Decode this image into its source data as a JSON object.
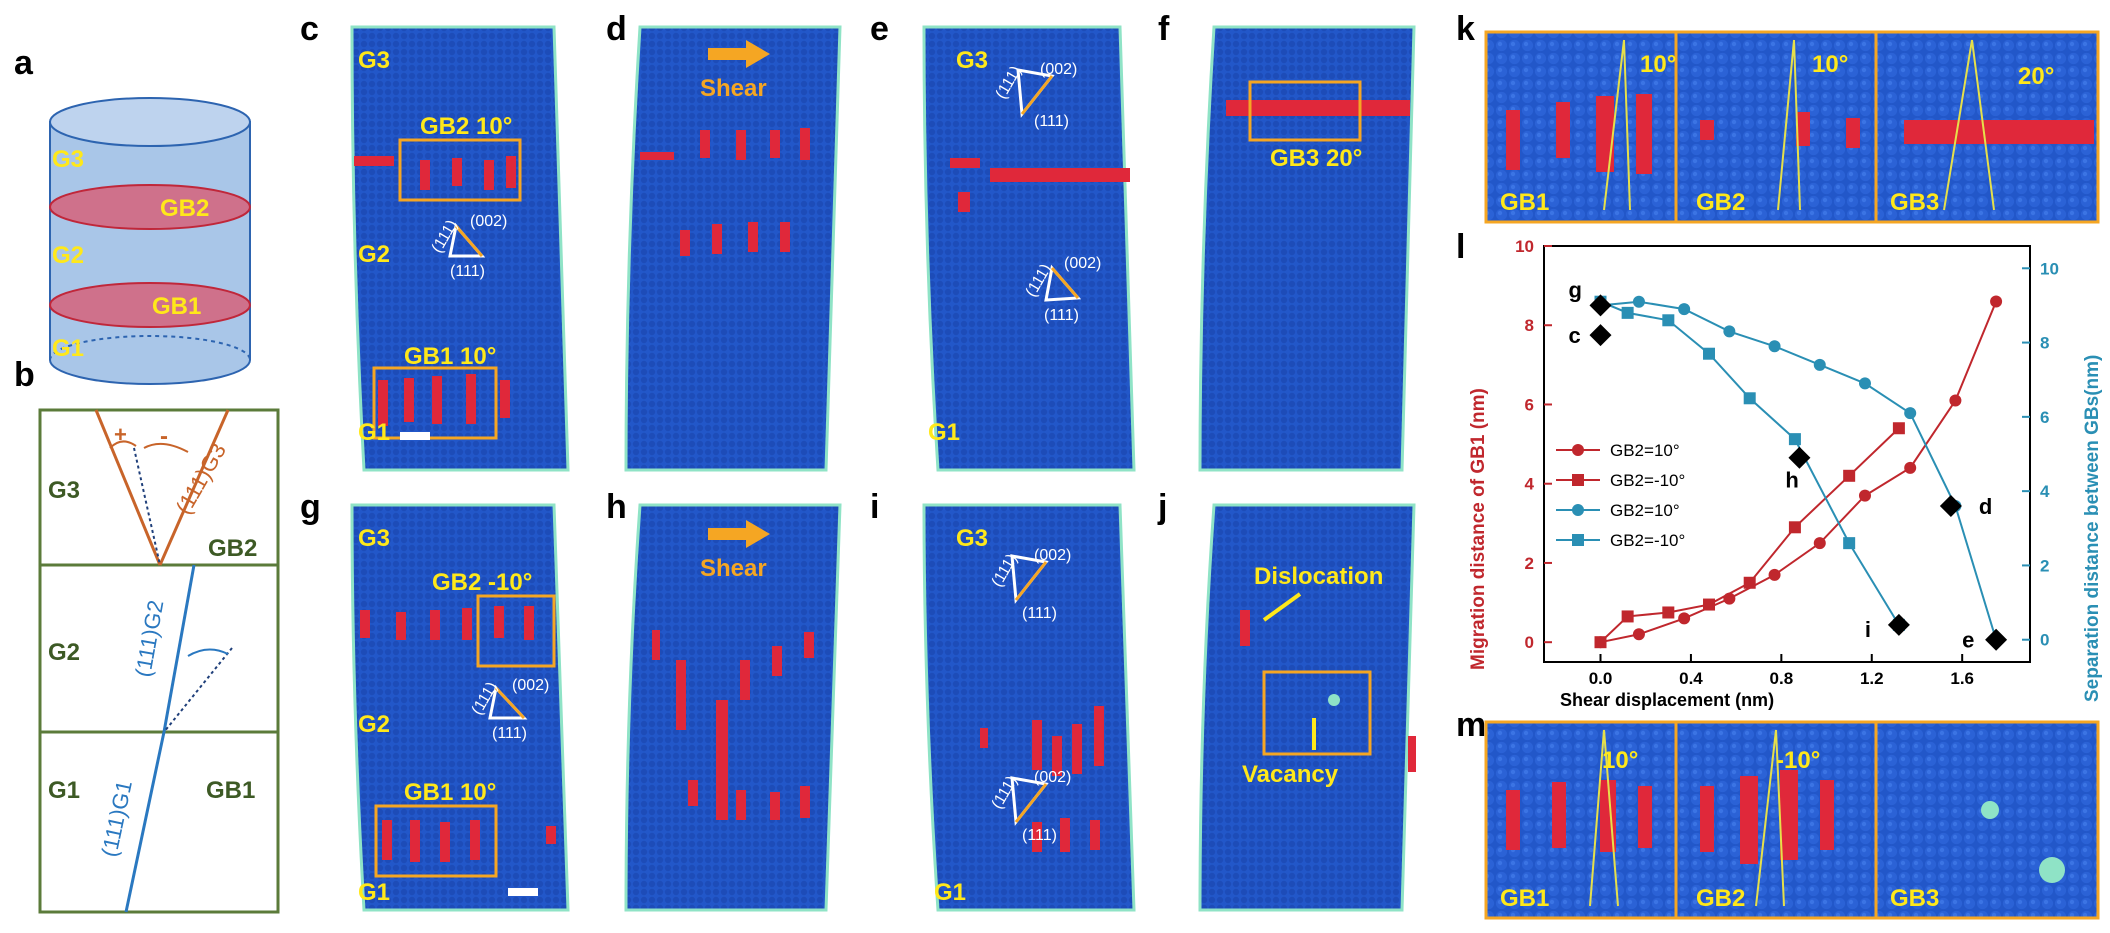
{
  "labels": {
    "a": "a",
    "b": "b",
    "c": "c",
    "d": "d",
    "e": "e",
    "f": "f",
    "g": "g",
    "h": "h",
    "i": "i",
    "j": "j",
    "k": "k",
    "l": "l",
    "m": "m"
  },
  "panel_a": {
    "g3": "G3",
    "gb2": "GB2",
    "g2": "G2",
    "gb1": "GB1",
    "g1": "G1"
  },
  "panel_b": {
    "g3": "G3",
    "g2": "G2",
    "g1": "G1",
    "gb2": "GB2",
    "gb1": "GB1",
    "plus": "+",
    "minus": "-",
    "plane_g3": "(111)G3",
    "plane_g2": "(111)G2",
    "plane_g1": "(111)G1"
  },
  "sim": {
    "c": {
      "g3": "G3",
      "g2": "G2",
      "g1": "G1",
      "gb2": "GB2 10°",
      "gb1": "GB1 10°",
      "tri_top": "(002)",
      "tri_left": "(111)",
      "tri_bottom": "(111)"
    },
    "d": {
      "shear": "Shear"
    },
    "e": {
      "g3": "G3",
      "g1": "G1",
      "tri_top": "(002)",
      "tri_left": "(111)",
      "tri_bottom": "(111)"
    },
    "f": {
      "gb3": "GB3 20°"
    },
    "g": {
      "g3": "G3",
      "g2": "G2",
      "g1": "G1",
      "gb2": "GB2 -10°",
      "gb1": "GB1 10°",
      "tri_top": "(002)",
      "tri_left": "(111)",
      "tri_bottom": "(111)"
    },
    "h": {
      "shear": "Shear"
    },
    "i": {
      "g3": "G3",
      "g1": "G1",
      "tri_top": "(002)",
      "tri_left": "(111)",
      "tri_bottom": "(111)"
    },
    "j": {
      "dislocation": "Dislocation",
      "vacancy": "Vacancy"
    }
  },
  "panel_k": {
    "angles": [
      "10°",
      "10°",
      "20°"
    ],
    "names": [
      "GB1",
      "GB2",
      "GB3"
    ]
  },
  "panel_m": {
    "angles": [
      "10°",
      "-10°"
    ],
    "names": [
      "GB1",
      "GB2",
      "GB3"
    ]
  },
  "colors": {
    "blue": "#2257c9",
    "red": "#e0283a",
    "cyan": "#8fe3c6",
    "orange": "#f5a623",
    "yellow": "#ffe81a",
    "olive": "#5b7b3a",
    "chart_red": "#c0272d",
    "chart_blue": "#2a8fb4"
  },
  "chart_data": {
    "type": "line",
    "xlabel": "Shear displacement (nm)",
    "ylabel_left": "Migration distance of GB1 (nm)",
    "ylabel_right": "Separation distance between GBs(nm)",
    "xlim": [
      -0.25,
      1.9
    ],
    "ylim_left": [
      -0.5,
      10
    ],
    "ylim_right": [
      -0.6,
      10.6
    ],
    "xticks": [
      "0.0",
      "0.4",
      "0.8",
      "1.2",
      "1.6"
    ],
    "yticks_left": [
      "0",
      "2",
      "4",
      "6",
      "8",
      "10"
    ],
    "yticks_right": [
      "0",
      "2",
      "4",
      "6",
      "8",
      "10"
    ],
    "series": [
      {
        "name": "GB2=10°",
        "axis": "left",
        "marker": "circle",
        "color": "#c0272d",
        "x": [
          0,
          0.17,
          0.37,
          0.57,
          0.77,
          0.97,
          1.17,
          1.37,
          1.57,
          1.75
        ],
        "y": [
          0,
          0.2,
          0.6,
          1.1,
          1.7,
          2.5,
          3.7,
          4.4,
          6.1,
          8.6
        ]
      },
      {
        "name": "GB2=-10°",
        "axis": "left",
        "marker": "square",
        "color": "#c0272d",
        "x": [
          0,
          0.12,
          0.3,
          0.48,
          0.66,
          0.86,
          1.1,
          1.32
        ],
        "y": [
          0,
          0.65,
          0.75,
          0.95,
          1.5,
          2.9,
          4.2,
          5.4
        ]
      },
      {
        "name": "GB2=10°",
        "axis": "right",
        "marker": "circle",
        "color": "#2a8fb4",
        "x": [
          0,
          0.17,
          0.37,
          0.57,
          0.77,
          0.97,
          1.17,
          1.37,
          1.57,
          1.75
        ],
        "y": [
          9.0,
          9.1,
          8.9,
          8.3,
          7.9,
          7.4,
          6.9,
          6.1,
          3.6,
          0
        ]
      },
      {
        "name": "GB2=-10°",
        "axis": "right",
        "marker": "square",
        "color": "#2a8fb4",
        "x": [
          0,
          0.12,
          0.3,
          0.48,
          0.66,
          0.86,
          1.1,
          1.32
        ],
        "y": [
          9.1,
          8.8,
          8.6,
          7.7,
          6.5,
          5.4,
          2.6,
          0.4
        ]
      }
    ],
    "markers": [
      {
        "label": "g",
        "x": 0,
        "y": 9.0
      },
      {
        "label": "c",
        "x": 0,
        "y": 8.2
      },
      {
        "label": "h",
        "x": 0.88,
        "y": 4.9
      },
      {
        "label": "i",
        "x": 1.32,
        "y": 0.4
      },
      {
        "label": "d",
        "x": 1.55,
        "y": 3.6
      },
      {
        "label": "e",
        "x": 1.75,
        "y": 0
      }
    ]
  }
}
